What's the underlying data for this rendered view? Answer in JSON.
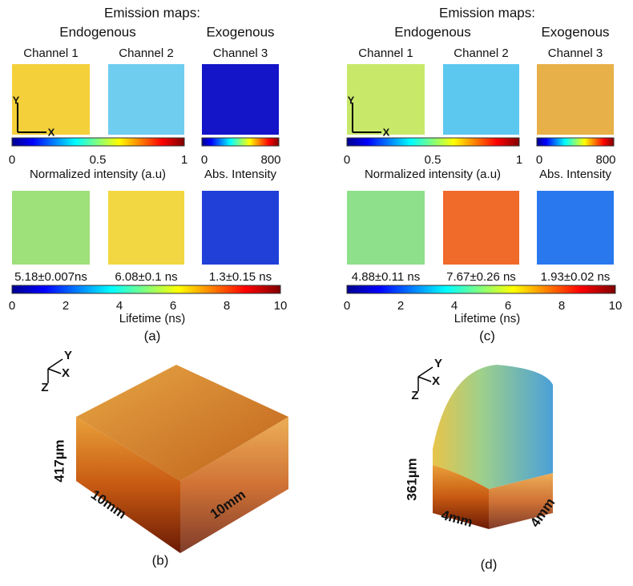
{
  "panels": [
    {
      "label": "(a)",
      "title": "Emission maps:",
      "groups": [
        "Endogenous",
        "Exogenous"
      ],
      "channels": [
        "Channel 1",
        "Channel 2",
        "Channel 3"
      ],
      "norm_ticks": [
        "0",
        "0.5",
        "1"
      ],
      "norm_caption": "Normalized intensity (a.u)",
      "abs_ticks": [
        "0",
        "800"
      ],
      "abs_caption": "Abs. Intensity",
      "lifetimes": [
        "5.18±0.007ns",
        "6.08±0.1 ns",
        "1.3±0.15 ns"
      ],
      "lifetime_ticks": [
        "0",
        "2",
        "4",
        "6",
        "8",
        "10"
      ],
      "lifetime_caption": "Lifetime (ns)",
      "axes": [
        "Y",
        "X"
      ]
    },
    {
      "label": "(c)",
      "title": "Emission maps:",
      "groups": [
        "Endogenous",
        "Exogenous"
      ],
      "channels": [
        "Channel 1",
        "Channel 2",
        "Channel 3"
      ],
      "norm_ticks": [
        "0",
        "0.5",
        "1"
      ],
      "norm_caption": "Normalized intensity (a.u)",
      "abs_ticks": [
        "0",
        "800"
      ],
      "abs_caption": "Abs. Intensity",
      "lifetimes": [
        "4.88±0.11 ns",
        "7.67±0.26 ns",
        "1.93±0.02 ns"
      ],
      "lifetime_ticks": [
        "0",
        "2",
        "4",
        "6",
        "8",
        "10"
      ],
      "lifetime_caption": "Lifetime (ns)",
      "axes": [
        "Y",
        "X"
      ]
    }
  ],
  "volumes": [
    {
      "label": "(b)",
      "axes": [
        "Y",
        "X",
        "Z"
      ],
      "height": "417µm",
      "depth": "10mm",
      "width": "10mm"
    },
    {
      "label": "(d)",
      "axes": [
        "Y",
        "X",
        "Z"
      ],
      "height": "361µm",
      "depth": "4mm",
      "width": "4mm"
    }
  ]
}
